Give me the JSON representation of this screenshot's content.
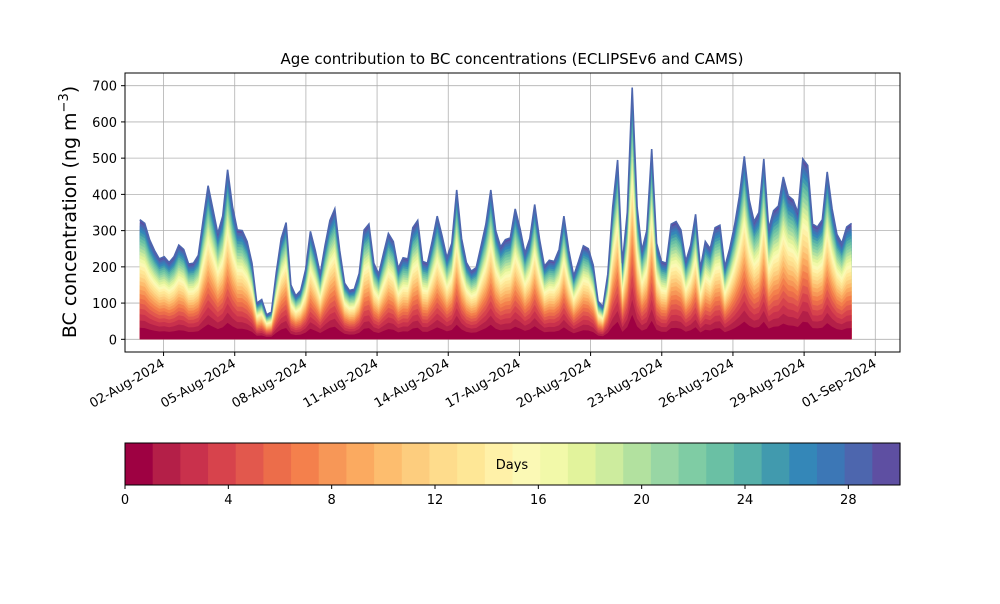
{
  "chart_data": {
    "type": "area",
    "title": "Age contribution to BC concentrations (ECLIPSEv6 and CAMS)",
    "ylabel": "BC concentration (ng m",
    "ylabel_sup": "−3",
    "ylabel_close": ")",
    "xlabel": "",
    "x_start": "2024-08-01",
    "x_end": "2024-08-31",
    "xlim": [
      "2024-07-31T09:00",
      "2024-09-02T01:00"
    ],
    "ylim": [
      -35,
      735
    ],
    "yticks": [
      0,
      100,
      200,
      300,
      400,
      500,
      600,
      700
    ],
    "xticks": [
      {
        "date": "2024-08-02",
        "label": "02-Aug-2024"
      },
      {
        "date": "2024-08-05",
        "label": "05-Aug-2024"
      },
      {
        "date": "2024-08-08",
        "label": "08-Aug-2024"
      },
      {
        "date": "2024-08-11",
        "label": "11-Aug-2024"
      },
      {
        "date": "2024-08-14",
        "label": "14-Aug-2024"
      },
      {
        "date": "2024-08-17",
        "label": "17-Aug-2024"
      },
      {
        "date": "2024-08-20",
        "label": "20-Aug-2024"
      },
      {
        "date": "2024-08-23",
        "label": "23-Aug-2024"
      },
      {
        "date": "2024-08-26",
        "label": "26-Aug-2024"
      },
      {
        "date": "2024-08-29",
        "label": "29-Aug-2024"
      },
      {
        "date": "2024-09-01",
        "label": "01-Sep-2024"
      }
    ],
    "grid": true,
    "total": [
      330,
      320,
      275,
      245,
      222,
      228,
      212,
      228,
      260,
      248,
      208,
      210,
      232,
      330,
      424,
      358,
      292,
      340,
      468,
      366,
      302,
      300,
      270,
      210,
      100,
      110,
      68,
      75,
      185,
      278,
      322,
      150,
      120,
      135,
      192,
      298,
      245,
      180,
      260,
      328,
      360,
      245,
      155,
      135,
      138,
      182,
      302,
      318,
      210,
      180,
      238,
      292,
      270,
      196,
      225,
      222,
      308,
      328,
      215,
      210,
      272,
      340,
      285,
      225,
      265,
      412,
      278,
      212,
      188,
      198,
      258,
      318,
      412,
      300,
      255,
      275,
      280,
      360,
      305,
      238,
      278,
      372,
      275,
      202,
      218,
      215,
      248,
      340,
      245,
      175,
      215,
      258,
      250,
      205,
      105,
      90,
      180,
      365,
      495,
      210,
      350,
      695,
      365,
      245,
      300,
      525,
      265,
      215,
      210,
      318,
      325,
      302,
      215,
      260,
      345,
      195,
      270,
      250,
      308,
      315,
      200,
      250,
      315,
      395,
      505,
      385,
      325,
      350,
      498,
      305,
      355,
      368,
      448,
      396,
      385,
      350,
      498,
      480,
      318,
      310,
      330,
      462,
      360,
      290,
      265,
      310,
      320
    ],
    "colorbar": {
      "label": "Days",
      "vmin": 0,
      "vmax": 30,
      "ticks": [
        0,
        4,
        8,
        12,
        16,
        20,
        24,
        28
      ],
      "colors": [
        "#9e0142",
        "#b41f48",
        "#c9314c",
        "#d7434c",
        "#e2584d",
        "#ec6d4a",
        "#f4804c",
        "#f79757",
        "#fbaa60",
        "#fdbd6e",
        "#fdcd7e",
        "#fedc8c",
        "#fee796",
        "#fff1a8",
        "#fbf9b5",
        "#f2f9a9",
        "#e2f39c",
        "#cdec9e",
        "#b2e19f",
        "#98d6a4",
        "#7fcca4",
        "#6ac0a4",
        "#56b0a9",
        "#419aae",
        "#3487b8",
        "#3c77b6",
        "#4d66ae",
        "#5e4fa2"
      ]
    }
  }
}
